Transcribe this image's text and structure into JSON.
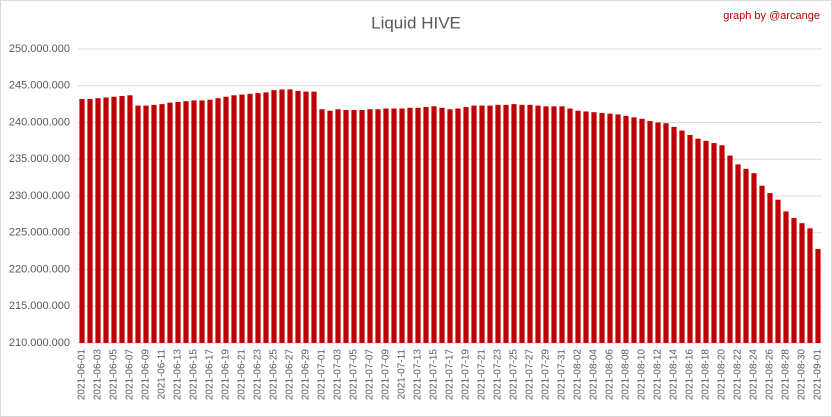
{
  "chart_data": {
    "type": "bar",
    "title": "Liquid HIVE",
    "subtitle": "graph by @arcange",
    "categories": [
      "2021-06-01",
      null,
      "2021-06-03",
      null,
      "2021-06-05",
      null,
      "2021-06-07",
      null,
      "2021-06-09",
      null,
      "2021-06-11",
      null,
      "2021-06-13",
      null,
      "2021-06-15",
      null,
      "2021-06-17",
      null,
      "2021-06-19",
      null,
      "2021-06-21",
      null,
      "2021-06-23",
      null,
      "2021-06-25",
      null,
      "2021-06-27",
      null,
      "2021-06-29",
      null,
      "2021-07-01",
      null,
      "2021-07-03",
      null,
      "2021-07-05",
      null,
      "2021-07-07",
      null,
      "2021-07-09",
      null,
      "2021-07-11",
      null,
      "2021-07-13",
      null,
      "2021-07-15",
      null,
      "2021-07-17",
      null,
      "2021-07-19",
      null,
      "2021-07-21",
      null,
      "2021-07-23",
      null,
      "2021-07-25",
      null,
      "2021-07-27",
      null,
      "2021-07-29",
      null,
      "2021-07-31",
      null,
      "2021-08-02",
      null,
      "2021-08-04",
      null,
      "2021-08-06",
      null,
      "2021-08-08",
      null,
      "2021-08-10",
      null,
      "2021-08-12",
      null,
      "2021-08-14",
      null,
      "2021-08-16",
      null,
      "2021-08-18",
      null,
      "2021-08-20",
      null,
      "2021-08-22",
      null,
      "2021-08-24",
      null,
      "2021-08-26",
      null,
      "2021-08-28",
      null,
      "2021-08-30",
      null,
      "2021-09-01"
    ],
    "values": [
      243200000,
      243200000,
      243300000,
      243400000,
      243500000,
      243600000,
      243700000,
      242300000,
      242300000,
      242400000,
      242500000,
      242700000,
      242800000,
      242900000,
      243000000,
      243000000,
      243100000,
      243300000,
      243500000,
      243700000,
      243800000,
      243900000,
      244000000,
      244100000,
      244400000,
      244500000,
      244500000,
      244300000,
      244200000,
      244200000,
      241800000,
      241600000,
      241800000,
      241700000,
      241700000,
      241700000,
      241800000,
      241800000,
      241900000,
      241900000,
      241900000,
      242000000,
      242000000,
      242100000,
      242200000,
      242000000,
      241800000,
      241900000,
      242100000,
      242300000,
      242300000,
      242300000,
      242400000,
      242400000,
      242500000,
      242400000,
      242400000,
      242300000,
      242200000,
      242200000,
      242200000,
      241900000,
      241600000,
      241500000,
      241400000,
      241300000,
      241200000,
      241100000,
      240900000,
      240700000,
      240500000,
      240200000,
      240000000,
      239900000,
      239400000,
      238900000,
      238300000,
      237800000,
      237500000,
      237200000,
      236900000,
      235500000,
      234300000,
      233700000,
      233100000,
      231400000,
      230400000,
      229500000,
      227900000,
      227000000,
      226300000,
      225600000,
      222800000
    ],
    "color": "#c00000",
    "ylim": [
      210000000,
      250000000
    ],
    "yticks": [
      {
        "value": 210000000,
        "label": "210.000.000"
      },
      {
        "value": 215000000,
        "label": "215.000.000"
      },
      {
        "value": 220000000,
        "label": "220.000.000"
      },
      {
        "value": 225000000,
        "label": "225.000.000"
      },
      {
        "value": 230000000,
        "label": "230.000.000"
      },
      {
        "value": 235000000,
        "label": "235.000.000"
      },
      {
        "value": 240000000,
        "label": "240.000.000"
      },
      {
        "value": 245000000,
        "label": "245.000.000"
      },
      {
        "value": 250000000,
        "label": "250.000.000"
      }
    ],
    "grid": true
  }
}
